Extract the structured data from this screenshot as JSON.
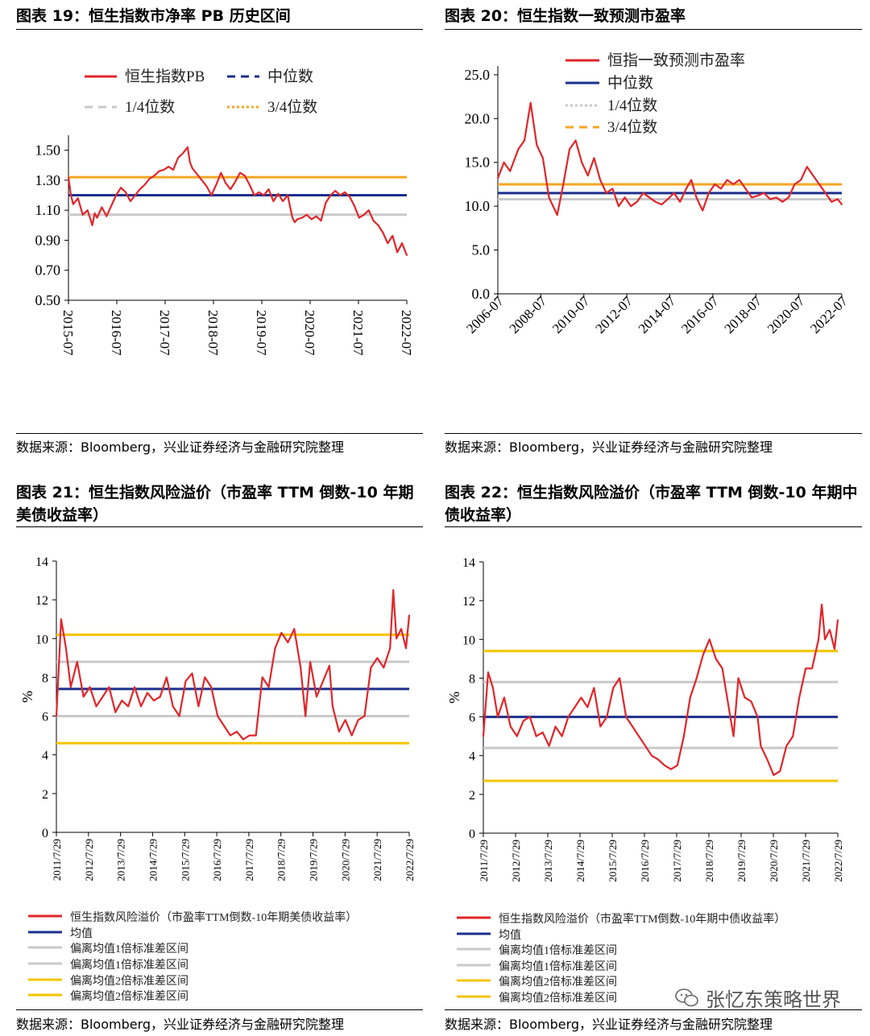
{
  "panels": [
    {
      "title": "图表 19：恒生指数市净率 PB 历史区间",
      "source": "数据来源：Bloomberg，兴业证券经济与金融研究院整理"
    },
    {
      "title": "图表 20：恒生指数一致预测市盈率",
      "source": "数据来源：Bloomberg，兴业证券经济与金融研究院整理"
    },
    {
      "title": "图表 21：恒生指数风险溢价（市盈率 TTM 倒数-10 年期美债收益率）",
      "source": "数据来源：Bloomberg，兴业证券经济与金融研究院整理"
    },
    {
      "title": "图表 22：恒生指数风险溢价（市盈率 TTM 倒数-10 年期中债收益率）",
      "source": "数据来源：Bloomberg，兴业证券经济与金融研究院整理"
    }
  ],
  "watermark": "张忆东策略世界",
  "chart_data": [
    {
      "id": "c19",
      "type": "line",
      "ylim": [
        0.5,
        1.6
      ],
      "yticks": [
        "0.50",
        "0.70",
        "0.90",
        "1.10",
        "1.30",
        "1.50"
      ],
      "ytick_values": [
        0.5,
        0.7,
        0.9,
        1.1,
        1.3,
        1.5
      ],
      "xticks": [
        "2015-07",
        "2016-07",
        "2017-07",
        "2018-07",
        "2019-07",
        "2020-07",
        "2021-07",
        "2022-07"
      ],
      "xlim": [
        2015.5,
        2022.6
      ],
      "series_name": "恒生指数PB",
      "series_color": "#e0262a",
      "x": [
        2015.5,
        2015.55,
        2015.6,
        2015.7,
        2015.8,
        2015.9,
        2016.0,
        2016.05,
        2016.1,
        2016.2,
        2016.3,
        2016.4,
        2016.5,
        2016.6,
        2016.7,
        2016.8,
        2016.9,
        2017.0,
        2017.1,
        2017.2,
        2017.3,
        2017.4,
        2017.5,
        2017.6,
        2017.7,
        2017.8,
        2017.9,
        2018.0,
        2018.05,
        2018.1,
        2018.2,
        2018.3,
        2018.4,
        2018.5,
        2018.6,
        2018.7,
        2018.8,
        2018.9,
        2019.0,
        2019.1,
        2019.2,
        2019.3,
        2019.4,
        2019.5,
        2019.6,
        2019.7,
        2019.8,
        2019.9,
        2020.0,
        2020.1,
        2020.2,
        2020.25,
        2020.3,
        2020.4,
        2020.5,
        2020.6,
        2020.7,
        2020.8,
        2020.9,
        2021.0,
        2021.1,
        2021.2,
        2021.3,
        2021.4,
        2021.5,
        2021.6,
        2021.7,
        2021.8,
        2021.9,
        2022.0,
        2022.1,
        2022.2,
        2022.3,
        2022.4,
        2022.5,
        2022.6
      ],
      "y": [
        1.32,
        1.2,
        1.14,
        1.18,
        1.07,
        1.1,
        1.0,
        1.08,
        1.05,
        1.12,
        1.06,
        1.13,
        1.2,
        1.25,
        1.22,
        1.16,
        1.2,
        1.24,
        1.27,
        1.31,
        1.33,
        1.36,
        1.37,
        1.39,
        1.37,
        1.45,
        1.48,
        1.52,
        1.42,
        1.38,
        1.34,
        1.3,
        1.26,
        1.2,
        1.27,
        1.35,
        1.28,
        1.24,
        1.29,
        1.35,
        1.33,
        1.27,
        1.2,
        1.22,
        1.2,
        1.24,
        1.16,
        1.21,
        1.16,
        1.2,
        1.05,
        1.02,
        1.04,
        1.05,
        1.07,
        1.04,
        1.06,
        1.03,
        1.15,
        1.2,
        1.23,
        1.2,
        1.22,
        1.19,
        1.13,
        1.05,
        1.07,
        1.1,
        1.03,
        1.0,
        0.95,
        0.88,
        0.93,
        0.82,
        0.88,
        0.8
      ],
      "hlines": [
        {
          "name": "中位数",
          "value": 1.2,
          "color": "#1b2f8c",
          "legend_style": "dashed"
        },
        {
          "name": "1/4位数",
          "value": 1.07,
          "color": "#c9c9c9",
          "legend_style": "dashed"
        },
        {
          "name": "3/4位数",
          "value": 1.32,
          "color": "#f5a623",
          "legend_style": "dotted"
        }
      ]
    },
    {
      "id": "c20",
      "type": "line",
      "ylim": [
        0,
        26
      ],
      "yticks": [
        "0.0",
        "5.0",
        "10.0",
        "15.0",
        "20.0",
        "25.0"
      ],
      "ytick_values": [
        0,
        5,
        10,
        15,
        20,
        25
      ],
      "xticks": [
        "2006-07",
        "2008-07",
        "2010-07",
        "2012-07",
        "2014-07",
        "2016-07",
        "2018-07",
        "2020-07",
        "2022-07"
      ],
      "xlim": [
        2006.0,
        2022.8
      ],
      "series_name": "恒指一致预测市盈率",
      "series_color": "#e0262a",
      "x": [
        2006.0,
        2006.3,
        2006.6,
        2007.0,
        2007.3,
        2007.6,
        2007.9,
        2008.2,
        2008.5,
        2008.9,
        2009.2,
        2009.5,
        2009.8,
        2010.1,
        2010.4,
        2010.7,
        2011.0,
        2011.3,
        2011.6,
        2011.9,
        2012.2,
        2012.5,
        2012.8,
        2013.1,
        2013.4,
        2013.7,
        2014.0,
        2014.3,
        2014.6,
        2014.9,
        2015.2,
        2015.45,
        2015.7,
        2016.0,
        2016.3,
        2016.6,
        2016.9,
        2017.2,
        2017.5,
        2017.8,
        2018.1,
        2018.4,
        2018.7,
        2019.0,
        2019.3,
        2019.6,
        2019.9,
        2020.2,
        2020.5,
        2020.8,
        2021.1,
        2021.4,
        2021.7,
        2022.0,
        2022.3,
        2022.6,
        2022.8
      ],
      "y": [
        13.2,
        15.0,
        14.0,
        16.5,
        17.5,
        21.8,
        17.0,
        15.5,
        11.0,
        9.0,
        12.5,
        16.5,
        17.5,
        15.0,
        13.5,
        15.5,
        13.0,
        11.5,
        12.0,
        10.0,
        11.0,
        10.0,
        10.5,
        11.5,
        11.0,
        10.5,
        10.2,
        10.8,
        11.5,
        10.5,
        12.0,
        13.0,
        11.0,
        9.5,
        11.5,
        12.5,
        12.0,
        13.0,
        12.5,
        13.0,
        12.0,
        11.0,
        11.2,
        11.5,
        10.8,
        11.0,
        10.5,
        11.0,
        12.5,
        13.0,
        14.5,
        13.5,
        12.5,
        11.5,
        10.5,
        10.8,
        10.2
      ],
      "hlines": [
        {
          "name": "中位数",
          "value": 11.5,
          "color": "#1b2f8c",
          "legend_style": "solid"
        },
        {
          "name": "1/4位数",
          "value": 10.8,
          "color": "#c9c9c9",
          "legend_style": "dotted"
        },
        {
          "name": "3/4位数",
          "value": 12.5,
          "color": "#f5a623",
          "legend_style": "dashed"
        }
      ]
    },
    {
      "id": "c21",
      "type": "line",
      "ylabel": "%",
      "ylim": [
        0,
        14
      ],
      "yticks": [
        "0",
        "2",
        "4",
        "6",
        "8",
        "10",
        "12",
        "14"
      ],
      "ytick_values": [
        0,
        2,
        4,
        6,
        8,
        10,
        12,
        14
      ],
      "xticks": [
        "2011/7/29",
        "2012/7/29",
        "2013/7/29",
        "2014/7/29",
        "2015/7/29",
        "2016/7/29",
        "2017/7/29",
        "2018/7/29",
        "2019/7/29",
        "2020/7/29",
        "2021/7/29",
        "2022/7/29"
      ],
      "xlim": [
        2011.55,
        2022.6
      ],
      "series_name": "恒生指数风险溢价（市盈率TTM倒数-10年期美债收益率）",
      "series_color": "#e0262a",
      "x": [
        2011.55,
        2011.7,
        2011.85,
        2012.0,
        2012.2,
        2012.4,
        2012.6,
        2012.8,
        2013.0,
        2013.2,
        2013.4,
        2013.6,
        2013.8,
        2014.0,
        2014.2,
        2014.4,
        2014.6,
        2014.8,
        2015.0,
        2015.2,
        2015.4,
        2015.6,
        2015.8,
        2016.0,
        2016.2,
        2016.4,
        2016.6,
        2016.8,
        2017.0,
        2017.2,
        2017.4,
        2017.6,
        2017.8,
        2018.0,
        2018.2,
        2018.4,
        2018.6,
        2018.8,
        2019.0,
        2019.2,
        2019.35,
        2019.5,
        2019.7,
        2019.9,
        2020.1,
        2020.2,
        2020.4,
        2020.6,
        2020.8,
        2021.0,
        2021.2,
        2021.4,
        2021.6,
        2021.8,
        2022.0,
        2022.1,
        2022.2,
        2022.35,
        2022.5,
        2022.6
      ],
      "y": [
        6.0,
        11.0,
        9.5,
        7.5,
        8.8,
        7.0,
        7.5,
        6.5,
        7.0,
        7.5,
        6.2,
        6.8,
        6.5,
        7.5,
        6.5,
        7.2,
        6.8,
        7.0,
        8.0,
        6.5,
        6.0,
        7.8,
        8.2,
        6.5,
        8.0,
        7.5,
        6.0,
        5.5,
        5.0,
        5.2,
        4.8,
        5.0,
        5.0,
        8.0,
        7.5,
        9.5,
        10.3,
        9.8,
        10.5,
        8.5,
        6.0,
        8.8,
        7.0,
        7.8,
        8.6,
        6.5,
        5.2,
        5.8,
        5.0,
        5.8,
        6.0,
        8.5,
        9.0,
        8.5,
        9.5,
        12.5,
        10.0,
        10.5,
        9.5,
        11.2
      ],
      "hlines": [
        {
          "name": "均值",
          "value": 7.4,
          "color": "#1b2f8c",
          "legend_style": "solid"
        },
        {
          "name": "偏离均值1倍标准差区间",
          "value": 8.8,
          "color": "#c9c9c9",
          "legend_style": "solid"
        },
        {
          "name": "偏离均值1倍标准差区间",
          "value": 6.0,
          "color": "#c9c9c9",
          "legend_style": "solid"
        },
        {
          "name": "偏离均值2倍标准差区间",
          "value": 10.2,
          "color": "#f5c400",
          "legend_style": "solid"
        },
        {
          "name": "偏离均值2倍标准差区间",
          "value": 4.6,
          "color": "#f5c400",
          "legend_style": "solid"
        }
      ]
    },
    {
      "id": "c22",
      "type": "line",
      "ylabel": "%",
      "ylim": [
        0,
        14
      ],
      "yticks": [
        "0",
        "2",
        "4",
        "6",
        "8",
        "10",
        "12",
        "14"
      ],
      "ytick_values": [
        0,
        2,
        4,
        6,
        8,
        10,
        12,
        14
      ],
      "xticks": [
        "2011/7/29",
        "2012/7/29",
        "2013/7/29",
        "2014/7/29",
        "2015/7/29",
        "2016/7/29",
        "2017/7/29",
        "2018/7/29",
        "2019/7/29",
        "2020/7/29",
        "2021/7/29",
        "2022/7/29"
      ],
      "xlim": [
        2011.55,
        2022.6
      ],
      "series_name": "恒生指数风险溢价（市盈率TTM倒数-10年期中债收益率）",
      "series_color": "#e0262a",
      "x": [
        2011.55,
        2011.7,
        2011.85,
        2012.0,
        2012.2,
        2012.4,
        2012.6,
        2012.8,
        2013.0,
        2013.2,
        2013.4,
        2013.6,
        2013.8,
        2014.0,
        2014.2,
        2014.4,
        2014.6,
        2014.8,
        2015.0,
        2015.2,
        2015.4,
        2015.6,
        2015.8,
        2016.0,
        2016.2,
        2016.4,
        2016.6,
        2016.8,
        2017.0,
        2017.2,
        2017.4,
        2017.6,
        2017.8,
        2018.0,
        2018.2,
        2018.4,
        2018.6,
        2018.8,
        2019.0,
        2019.2,
        2019.35,
        2019.5,
        2019.7,
        2019.9,
        2020.1,
        2020.2,
        2020.4,
        2020.6,
        2020.8,
        2021.0,
        2021.2,
        2021.4,
        2021.6,
        2021.8,
        2022.0,
        2022.1,
        2022.2,
        2022.35,
        2022.5,
        2022.6
      ],
      "y": [
        5.0,
        8.3,
        7.5,
        6.0,
        7.0,
        5.5,
        5.0,
        5.8,
        6.0,
        5.0,
        5.2,
        4.5,
        5.5,
        5.0,
        6.0,
        6.5,
        7.0,
        6.5,
        7.5,
        5.5,
        6.0,
        7.5,
        8.0,
        6.0,
        5.5,
        5.0,
        4.5,
        4.0,
        3.8,
        3.5,
        3.3,
        3.5,
        5.0,
        7.0,
        8.0,
        9.2,
        10.0,
        9.0,
        8.5,
        6.5,
        5.0,
        8.0,
        7.0,
        6.8,
        6.0,
        4.5,
        3.8,
        3.0,
        3.2,
        4.5,
        5.0,
        7.0,
        8.5,
        8.5,
        10.0,
        11.8,
        10.0,
        10.5,
        9.5,
        11.0
      ],
      "hlines": [
        {
          "name": "均值",
          "value": 6.0,
          "color": "#1b2f8c",
          "legend_style": "solid"
        },
        {
          "name": "偏离均值1倍标准差区间",
          "value": 7.8,
          "color": "#c9c9c9",
          "legend_style": "solid"
        },
        {
          "name": "偏离均值1倍标准差区间",
          "value": 4.4,
          "color": "#c9c9c9",
          "legend_style": "solid"
        },
        {
          "name": "偏离均值2倍标准差区间",
          "value": 9.4,
          "color": "#f5c400",
          "legend_style": "solid"
        },
        {
          "name": "偏离均值2倍标准差区间",
          "value": 2.7,
          "color": "#f5c400",
          "legend_style": "solid"
        }
      ]
    }
  ]
}
